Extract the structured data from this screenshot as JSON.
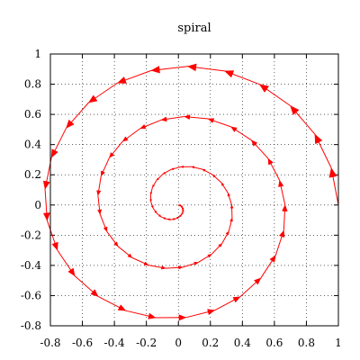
{
  "chart_data": {
    "type": "line",
    "title": "spiral",
    "xlabel": "",
    "ylabel": "",
    "xlim": [
      -0.8,
      1
    ],
    "ylim": [
      -0.8,
      1
    ],
    "xticks": [
      "-0.8",
      "-0.6",
      "-0.4",
      "-0.2",
      "0",
      "0.2",
      "0.4",
      "0.6",
      "0.8",
      "1"
    ],
    "yticks": [
      "-0.8",
      "-0.6",
      "-0.4",
      "-0.2",
      "0",
      "0.2",
      "0.4",
      "0.6",
      "0.8",
      "1"
    ],
    "grid": true,
    "series": [
      {
        "style": "vectors",
        "color": "#ff0000",
        "shape": "spiral r = 1 - t/(6*pi), t from 0 to 6*pi, point = (r*cos t, r*sin t)",
        "points": 75
      }
    ]
  }
}
